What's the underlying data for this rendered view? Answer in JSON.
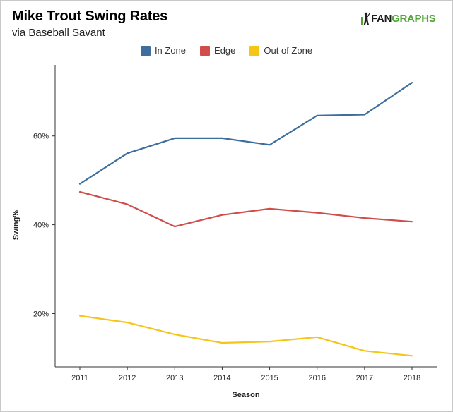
{
  "header": {
    "title": "Mike Trout Swing Rates",
    "subtitle": "via Baseball Savant",
    "logo": {
      "fan": "FAN",
      "graphs": "GRAPHS",
      "icon": "batter-icon"
    }
  },
  "legend": [
    {
      "name": "In Zone",
      "color": "#3e6e9e"
    },
    {
      "name": "Edge",
      "color": "#cf4d4b"
    },
    {
      "name": "Out of Zone",
      "color": "#f5c518"
    }
  ],
  "chart_data": {
    "type": "line",
    "title": "Mike Trout Swing Rates",
    "subtitle": "via Baseball Savant",
    "xlabel": "Season",
    "ylabel": "Swing%",
    "x": [
      "2011",
      "2012",
      "2013",
      "2014",
      "2015",
      "2016",
      "2017",
      "2018"
    ],
    "ylim": [
      8,
      76
    ],
    "yticks": [
      20,
      40,
      60
    ],
    "ytick_labels": [
      "20%",
      "40%",
      "60%"
    ],
    "grid": false,
    "legend_position": "top-center",
    "series": [
      {
        "name": "In Zone",
        "color": "#3e6e9e",
        "values": [
          49.2,
          56.1,
          59.5,
          59.5,
          58.0,
          64.6,
          64.8,
          72.0
        ]
      },
      {
        "name": "Edge",
        "color": "#cf4d4b",
        "values": [
          47.4,
          44.6,
          39.6,
          42.2,
          43.6,
          42.7,
          41.5,
          40.7
        ]
      },
      {
        "name": "Out of Zone",
        "color": "#f5c518",
        "values": [
          19.5,
          18.0,
          15.3,
          13.4,
          13.7,
          14.7,
          11.6,
          10.5
        ]
      }
    ]
  }
}
